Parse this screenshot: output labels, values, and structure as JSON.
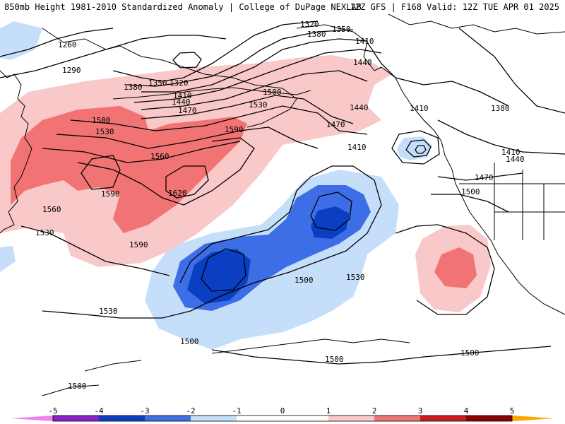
{
  "header": {
    "title": "850mb Height 1981-2010 Standardized Anomaly | College of DuPage NEXLAB",
    "run_info": "12Z GFS | F168 Valid: 12Z TUE APR 01 2025"
  },
  "colors": {
    "neg5": "#ee82ee",
    "neg4": "#8b1fc9",
    "neg3": "#0a3fc4",
    "neg2": "#3e6ee6",
    "neg1": "#c5dffa",
    "pos1": "#f9c8c8",
    "pos2": "#f27373",
    "pos3": "#cc1c1c",
    "pos4": "#8b0000",
    "pos5": "#ffa500",
    "coast": "#000000",
    "contour": "#000000"
  },
  "contour_labels": [
    "1260",
    "1290",
    "1320",
    "1320",
    "1350",
    "1350",
    "1380",
    "1380",
    "1380",
    "1410",
    "1410",
    "1410",
    "1410",
    "1410",
    "1440",
    "1440",
    "1440",
    "1440",
    "1470",
    "1470",
    "1470",
    "1500",
    "1500",
    "1500",
    "1500",
    "1500",
    "1500",
    "1500",
    "1500",
    "1530",
    "1530",
    "1530",
    "1530",
    "1530",
    "1560",
    "1560",
    "1590",
    "1590",
    "1590",
    "1620"
  ],
  "legend": {
    "ticks": [
      "-5",
      "-4",
      "-3",
      "-2",
      "-1",
      "0",
      "1",
      "2",
      "3",
      "4",
      "5"
    ]
  }
}
